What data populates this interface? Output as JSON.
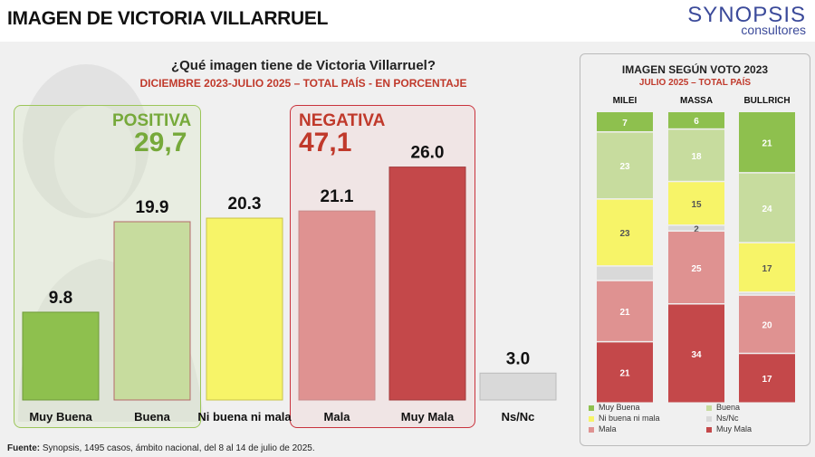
{
  "page_title": "IMAGEN DE VICTORIA VILLARRUEL",
  "logo": {
    "main": "SYNOPSIS",
    "sub": "consultores"
  },
  "question": "¿Qué imagen tiene de Victoria Villarruel?",
  "question_sub": "DICIEMBRE 2023-JULIO 2025 – TOTAL PAÍS - EN PORCENTAJE",
  "groups": {
    "positive": {
      "label": "POSITIVA",
      "value": "29,7"
    },
    "negative": {
      "label": "NEGATIVA",
      "value": "47,1"
    }
  },
  "source": {
    "label": "Fuente:",
    "text": " Synopsis, 1495 casos, ámbito nacional, del 8 al 14 de julio de 2025."
  },
  "colors": {
    "muy_buena": "#8ec04e",
    "buena": "#c7dc9e",
    "ni_buena_ni_mala": "#f7f468",
    "ns_nc": "#d9d9d9",
    "mala": "#df9291",
    "muy_mala": "#c4484a"
  },
  "chart_data": [
    {
      "type": "bar",
      "title": "¿Qué imagen tiene de Victoria Villarruel?",
      "subtitle": "DICIEMBRE 2023-JULIO 2025 – TOTAL PAÍS - EN PORCENTAJE",
      "categories": [
        "Muy Buena",
        "Buena",
        "Ni buena ni mala",
        "Mala",
        "Muy Mala",
        "Ns/Nc"
      ],
      "values": [
        9.8,
        19.9,
        20.3,
        21.1,
        26.0,
        3.0
      ],
      "value_labels": [
        "9.8",
        "19.9",
        "20.3",
        "21.1",
        "26.0",
        "3.0"
      ],
      "grid": false
    },
    {
      "type": "bar",
      "stacked": true,
      "title": "IMAGEN SEGÚN VOTO 2023",
      "subtitle": "JULIO 2025 – TOTAL PAÍS",
      "categories": [
        "MILEI",
        "MASSA",
        "BULLRICH"
      ],
      "series": [
        {
          "name": "Muy Buena",
          "values": [
            7,
            6,
            21
          ],
          "labels": [
            "7",
            "6",
            "21"
          ]
        },
        {
          "name": "Buena",
          "values": [
            23,
            18,
            24
          ],
          "labels": [
            "23",
            "18",
            "24"
          ]
        },
        {
          "name": "Ni buena ni mala",
          "values": [
            23,
            15,
            17
          ],
          "labels": [
            "23",
            "15",
            "17"
          ]
        },
        {
          "name": "Ns/Nc",
          "values": [
            5,
            2,
            1
          ],
          "labels": [
            "",
            "2",
            ""
          ]
        },
        {
          "name": "Mala",
          "values": [
            21,
            25,
            20
          ],
          "labels": [
            "21",
            "25",
            "20"
          ]
        },
        {
          "name": "Muy Mala",
          "values": [
            21,
            34,
            17
          ],
          "labels": [
            "21",
            "34",
            "17"
          ]
        }
      ],
      "legend": [
        {
          "name": "Muy Buena",
          "color": "#8ec04e"
        },
        {
          "name": "Buena",
          "color": "#c7dc9e"
        },
        {
          "name": "Ni buena ni mala",
          "color": "#f7f468"
        },
        {
          "name": "Ns/Nc",
          "color": "#d9d9d9"
        },
        {
          "name": "Mala",
          "color": "#df9291"
        },
        {
          "name": "Muy Mala",
          "color": "#c4484a"
        }
      ],
      "legend_position": "bottom",
      "ylim": [
        0,
        100
      ]
    }
  ]
}
